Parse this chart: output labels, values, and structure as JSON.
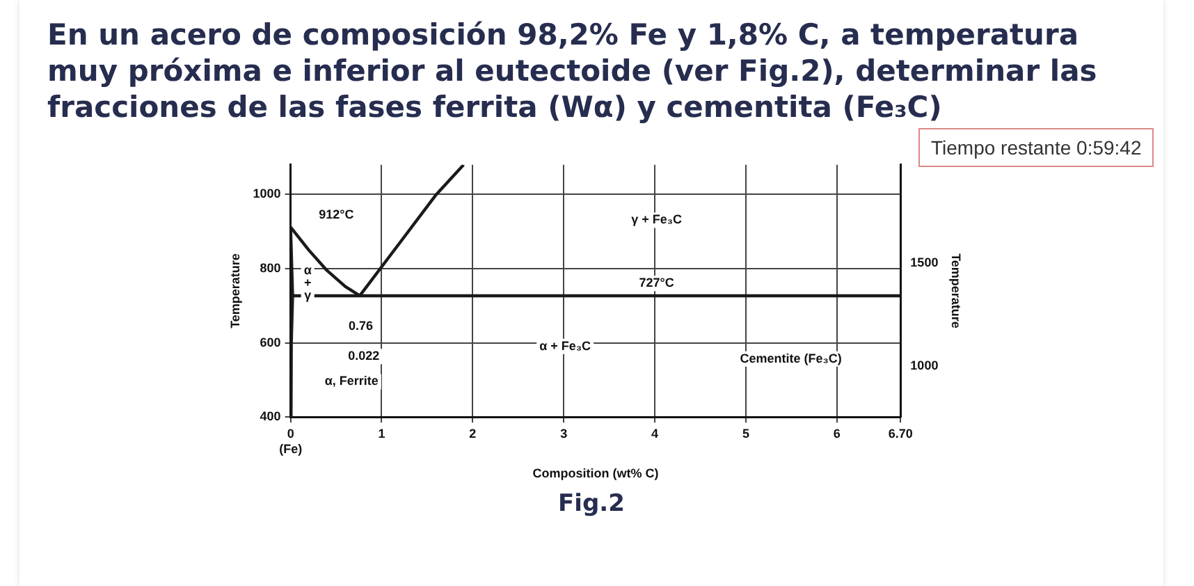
{
  "chart_data": {
    "type": "line",
    "title": "En un acero de composición 98,2% Fe y 1,8% C, a temperatura muy próxima e inferior al eutectoide (ver Fig.2), determinar las fracciones de las fases ferrita (Wα) y cementita (Fe₃C)",
    "xlabel": "Composition (wt% C)",
    "ylabel": "Temperature",
    "y2label": "Temperature",
    "xlim": [
      0,
      6.7
    ],
    "xticks": [
      {
        "value": 0,
        "label": "0\n(Fe)"
      },
      1,
      2,
      3,
      4,
      5,
      6,
      {
        "value": 6.7,
        "label": "6.70"
      }
    ],
    "ylim": [
      400,
      1080
    ],
    "yticks": [
      400,
      600,
      800,
      1000
    ],
    "y2lim": [
      752,
      1976
    ],
    "y2ticks": [
      1000,
      1500
    ],
    "grid": true,
    "legend": false,
    "marker": "none",
    "line_style": "solid",
    "series": [
      {
        "color": "#1a1a1a",
        "x": [
          0,
          0.022,
          0.008,
          0.005
        ],
        "values": [
          912,
          727,
          600,
          400
        ]
      },
      {
        "color": "#1a1a1a",
        "x": [
          0,
          0.2,
          0.4,
          0.6,
          0.76
        ],
        "values": [
          912,
          850,
          795,
          752,
          727
        ]
      },
      {
        "color": "#1a1a1a",
        "x": [
          0.76,
          1.2,
          1.6,
          1.9
        ],
        "values": [
          727,
          870,
          1000,
          1080
        ]
      },
      {
        "color": "#1a1a1a",
        "x": [
          0.022,
          6.7
        ],
        "values": [
          727,
          727
        ]
      }
    ],
    "annotations": [
      "Fig.2",
      "Tiempo restante 0:59:42",
      "912°C",
      "α\n+\nγ",
      "0.76",
      "0.022",
      "α, Ferrite",
      "γ + Fe₃C",
      "727°C",
      "α + Fe₃C",
      "Cementite (Fe₃C)"
    ]
  }
}
